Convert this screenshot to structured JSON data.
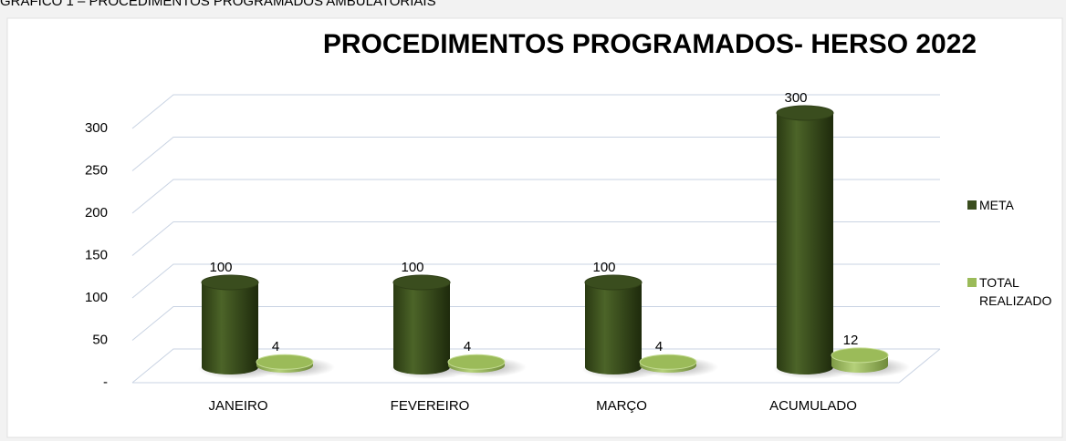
{
  "caption": "GRÁFICO 1 – PROCEDIMENTOS PROGRAMADOS AMBULATORIAIS",
  "chart_data": {
    "type": "bar3d",
    "title": "PROCEDIMENTOS PROGRAMADOS- HERSO 2022",
    "categories": [
      "JANEIRO",
      "FEVEREIRO",
      "MARÇO",
      "ACUMULADO"
    ],
    "series": [
      {
        "name": "META",
        "color": "#3a4d1e",
        "values": [
          100,
          100,
          100,
          300
        ]
      },
      {
        "name": "TOTAL REALIZADO",
        "color": "#9bbb59",
        "values": [
          4,
          4,
          4,
          12
        ]
      }
    ],
    "ylim": [
      0,
      300
    ],
    "yticks": [
      {
        "value": 0,
        "label": "-"
      },
      50,
      100,
      150,
      200,
      250,
      300
    ],
    "grid": true
  }
}
